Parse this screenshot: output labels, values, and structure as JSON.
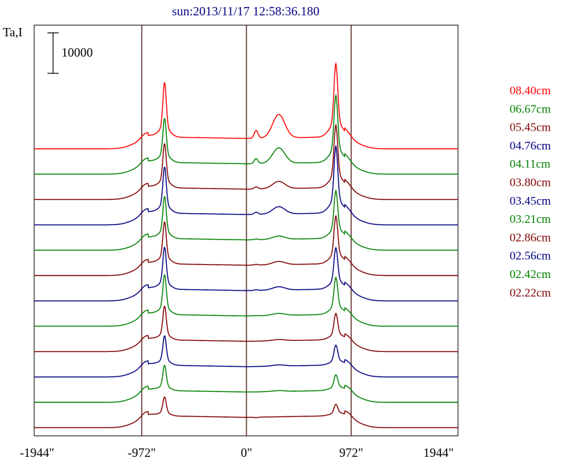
{
  "header": {
    "title": "sun:2013/11/17 12:58:36.180",
    "ylabel": "Ta,I"
  },
  "scale_bar": {
    "label": "10000",
    "value": 10000
  },
  "chart_data": {
    "type": "line",
    "title": "sun:2013/11/17 12:58:36.180",
    "xlabel": "",
    "ylabel": "Ta,I",
    "xlim": [
      -2000,
      1944
    ],
    "x_ticks": [
      {
        "value": -1944,
        "label": "-1944\""
      },
      {
        "value": -972,
        "label": "-972\""
      },
      {
        "value": 0,
        "label": "0\""
      },
      {
        "value": 972,
        "label": "972\""
      },
      {
        "value": 1944,
        "label": "1944\""
      }
    ],
    "vertical_lines": [
      -972,
      0,
      972
    ],
    "grid": false,
    "legend_placement": "right",
    "series": [
      {
        "name": "08.40cm",
        "color": "#ff0000",
        "baseline": 0,
        "peak_left": 13000,
        "peak_right": 17000,
        "mid": 8500,
        "disk": 3000,
        "limb": 1500
      },
      {
        "name": "06.67cm",
        "color": "#008000",
        "baseline": 1,
        "peak_left": 10500,
        "peak_right": 15500,
        "mid": 6500,
        "disk": 3000,
        "limb": 1500
      },
      {
        "name": "05.45cm",
        "color": "#800000",
        "baseline": 2,
        "peak_left": 10500,
        "peak_right": 14500,
        "mid": 4500,
        "disk": 3000,
        "limb": 1500
      },
      {
        "name": "04.76cm",
        "color": "#000080",
        "baseline": 3,
        "peak_left": 11000,
        "peak_right": 15500,
        "mid": 4500,
        "disk": 3000,
        "limb": 1500
      },
      {
        "name": "04.11cm",
        "color": "#008000",
        "baseline": 4,
        "peak_left": 10000,
        "peak_right": 11000,
        "mid": 3500,
        "disk": 3000,
        "limb": 1500
      },
      {
        "name": "03.80cm",
        "color": "#800000",
        "baseline": 5,
        "peak_left": 10000,
        "peak_right": 11000,
        "mid": 3500,
        "disk": 3000,
        "limb": 1500
      },
      {
        "name": "03.45cm",
        "color": "#000080",
        "baseline": 6,
        "peak_left": 10000,
        "peak_right": 9500,
        "mid": 3500,
        "disk": 3000,
        "limb": 1500
      },
      {
        "name": "03.21cm",
        "color": "#008000",
        "baseline": 7,
        "peak_left": 9500,
        "peak_right": 8500,
        "mid": 3200,
        "disk": 3000,
        "limb": 1500
      },
      {
        "name": "02.86cm",
        "color": "#800000",
        "baseline": 8,
        "peak_left": 8000,
        "peak_right": 6000,
        "mid": 3000,
        "disk": 3000,
        "limb": 1500
      },
      {
        "name": "02.56cm",
        "color": "#000080",
        "baseline": 9,
        "peak_left": 7000,
        "peak_right": 4500,
        "mid": 3000,
        "disk": 3000,
        "limb": 1500
      },
      {
        "name": "02.42cm",
        "color": "#008000",
        "baseline": 10,
        "peak_left": 6000,
        "peak_right": 3500,
        "mid": 2900,
        "disk": 3000,
        "limb": 1500
      },
      {
        "name": "02.22cm",
        "color": "#800000",
        "baseline": 11,
        "peak_left": 4500,
        "peak_right": 2500,
        "mid": 2700,
        "disk": 3000,
        "limb": 1500
      }
    ],
    "feature_positions": {
      "peak_left": -760,
      "mid": 300,
      "peak_right": 830,
      "limb": 972
    }
  }
}
